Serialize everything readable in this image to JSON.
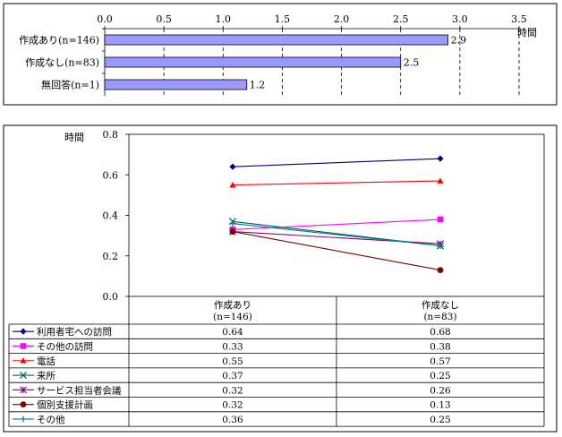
{
  "chart_data": [
    {
      "type": "bar",
      "orientation": "horizontal",
      "categories": [
        "作成あり(n=146)",
        "作成なし(n=83)",
        "無回答(n=1)"
      ],
      "values": [
        2.9,
        2.5,
        1.2
      ],
      "value_labels": [
        "2.9",
        "2.5",
        "1.2"
      ],
      "unit_label": "時間",
      "xlim": [
        0,
        3.5
      ],
      "x_ticks": [
        "0.0",
        "0.5",
        "1.0",
        "1.5",
        "2.0",
        "2.5",
        "3.0",
        "3.5"
      ],
      "tick_values": [
        0,
        0.5,
        1,
        1.5,
        2,
        2.5,
        3,
        3.5
      ],
      "grid": "vertical dashed",
      "bar_color": "#9999ff"
    },
    {
      "type": "line",
      "unit_label": "時間",
      "ylim": [
        0,
        0.8
      ],
      "y_ticks": [
        "0.0",
        "0.2",
        "0.4",
        "0.6",
        "0.8"
      ],
      "tick_values": [
        0,
        0.2,
        0.4,
        0.6,
        0.8
      ],
      "categories": [
        {
          "line1": "作成あり",
          "line2": "(n=146)"
        },
        {
          "line1": "作成なし",
          "line2": "(n=83)"
        }
      ],
      "legend_placement": "data-table-left",
      "series": [
        {
          "name": "利用者宅への訪問",
          "values": [
            0.64,
            0.68
          ],
          "labels": [
            "0.64",
            "0.68"
          ],
          "color": "#000080",
          "marker": "diamond"
        },
        {
          "name": "その他の訪問",
          "values": [
            0.33,
            0.38
          ],
          "labels": [
            "0.33",
            "0.38"
          ],
          "color": "#ff00ff",
          "marker": "square"
        },
        {
          "name": "電話",
          "values": [
            0.55,
            0.57
          ],
          "labels": [
            "0.55",
            "0.57"
          ],
          "color": "#ff0000",
          "marker": "triangle"
        },
        {
          "name": "来所",
          "values": [
            0.37,
            0.25
          ],
          "labels": [
            "0.37",
            "0.25"
          ],
          "color": "#006060",
          "marker": "x"
        },
        {
          "name": "サービス担当者会議",
          "values": [
            0.32,
            0.26
          ],
          "labels": [
            "0.32",
            "0.26"
          ],
          "color": "#800080",
          "marker": "star"
        },
        {
          "name": "個別支援計画",
          "values": [
            0.32,
            0.13
          ],
          "labels": [
            "0.32",
            "0.13"
          ],
          "color": "#800000",
          "marker": "circle"
        },
        {
          "name": "その他",
          "values": [
            0.36,
            0.25
          ],
          "labels": [
            "0.36",
            "0.25"
          ],
          "color": "#008080",
          "marker": "plus"
        }
      ]
    }
  ]
}
